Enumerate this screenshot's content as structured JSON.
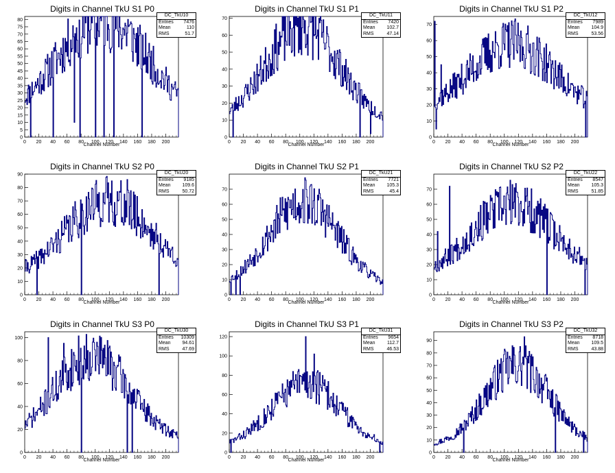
{
  "chart_data": [
    {
      "type": "histogram",
      "title": "Digits in Channel TkU S1 P0",
      "stats_name": "DC_TkU10",
      "entries": "7476",
      "mean": "110",
      "rms": "51.7",
      "xlabel": "Channel Number",
      "xlim": [
        0,
        218
      ],
      "ylim": [
        0,
        82
      ],
      "x_ticks": [
        0,
        20,
        40,
        60,
        80,
        100,
        120,
        140,
        160,
        180,
        200
      ],
      "y_ticks": [
        0,
        5,
        10,
        15,
        20,
        25,
        30,
        35,
        40,
        45,
        50,
        55,
        60,
        65,
        70,
        75,
        80
      ],
      "peak": 80,
      "baseline": 10,
      "mu": 110,
      "sigma": 66,
      "seed": 11,
      "spikes": [
        [
          8,
          0
        ],
        [
          40,
          0
        ],
        [
          70,
          10
        ],
        [
          78,
          0
        ],
        [
          100,
          0
        ],
        [
          112,
          0
        ],
        [
          126,
          0
        ],
        [
          146,
          80
        ],
        [
          166,
          0
        ]
      ]
    },
    {
      "type": "histogram",
      "title": "Digits in Channel TkU S1 P1",
      "stats_name": "DC_TkU11",
      "entries": "7420",
      "mean": "102.7",
      "rms": "47.14",
      "xlabel": "Channel Number",
      "xlim": [
        0,
        218
      ],
      "ylim": [
        0,
        71
      ],
      "x_ticks": [
        0,
        20,
        40,
        60,
        80,
        100,
        120,
        140,
        160,
        180,
        200
      ],
      "y_ticks": [
        0,
        10,
        20,
        30,
        40,
        50,
        60,
        70
      ],
      "peak": 65,
      "baseline": 8,
      "mu": 103,
      "sigma": 52,
      "seed": 23,
      "spikes": [
        [
          5,
          0
        ],
        [
          185,
          0
        ],
        [
          200,
          2
        ]
      ]
    },
    {
      "type": "histogram",
      "title": "Digits in Channel TkU S1 P2",
      "stats_name": "DC_TkU12",
      "entries": "7989",
      "mean": "104.9",
      "rms": "53.56",
      "xlabel": "Channel Number",
      "xlim": [
        0,
        218
      ],
      "ylim": [
        0,
        75
      ],
      "x_ticks": [
        0,
        20,
        40,
        60,
        80,
        100,
        120,
        140,
        160,
        180,
        200
      ],
      "y_ticks": [
        0,
        10,
        20,
        30,
        40,
        50,
        60,
        70
      ],
      "peak": 58,
      "baseline": 14,
      "mu": 110,
      "sigma": 60,
      "seed": 37,
      "spikes": [
        [
          1,
          72
        ],
        [
          3,
          5
        ],
        [
          10,
          45
        ],
        [
          215,
          0
        ]
      ]
    },
    {
      "type": "histogram",
      "title": "Digits in Channel TkU S2 P0",
      "stats_name": "DC_TkU20",
      "entries": "9185",
      "mean": "109.6",
      "rms": "50.72",
      "xlabel": "Channel Number",
      "xlim": [
        0,
        218
      ],
      "ylim": [
        0,
        90
      ],
      "x_ticks": [
        0,
        20,
        40,
        60,
        80,
        100,
        120,
        140,
        160,
        180,
        200
      ],
      "y_ticks": [
        0,
        10,
        20,
        30,
        40,
        50,
        60,
        70,
        80,
        90
      ],
      "peak": 70,
      "baseline": 12,
      "mu": 118,
      "sigma": 60,
      "seed": 41,
      "spikes": [
        [
          17,
          0
        ],
        [
          80,
          0
        ],
        [
          145,
          86
        ],
        [
          190,
          0
        ]
      ]
    },
    {
      "type": "histogram",
      "title": "Digits in Channel TkU S2 P1",
      "stats_name": "DC_TkU21",
      "entries": "7721",
      "mean": "105.3",
      "rms": "45.4",
      "xlabel": "Channel Number",
      "xlim": [
        0,
        218
      ],
      "ylim": [
        0,
        80
      ],
      "x_ticks": [
        0,
        20,
        40,
        60,
        80,
        100,
        120,
        140,
        160,
        180,
        200
      ],
      "y_ticks": [
        0,
        10,
        20,
        30,
        40,
        50,
        60,
        70
      ],
      "peak": 62,
      "baseline": 4,
      "mu": 105,
      "sigma": 50,
      "seed": 53,
      "spikes": [
        [
          2,
          0
        ],
        [
          9,
          0
        ],
        [
          12,
          12
        ],
        [
          15,
          0
        ],
        [
          108,
          76
        ]
      ]
    },
    {
      "type": "histogram",
      "title": "Digits in Channel TkU S2 P2",
      "stats_name": "DC_TkU22",
      "entries": "8547",
      "mean": "105.3",
      "rms": "51.85",
      "xlabel": "Channel Number",
      "xlim": [
        0,
        218
      ],
      "ylim": [
        0,
        80
      ],
      "x_ticks": [
        0,
        20,
        40,
        60,
        80,
        100,
        120,
        140,
        160,
        180,
        200
      ],
      "y_ticks": [
        0,
        10,
        20,
        30,
        40,
        50,
        60,
        70
      ],
      "peak": 60,
      "baseline": 12,
      "mu": 112,
      "sigma": 58,
      "seed": 67,
      "spikes": [
        [
          5,
          42
        ],
        [
          22,
          72
        ],
        [
          160,
          0
        ],
        [
          214,
          0
        ]
      ]
    },
    {
      "type": "histogram",
      "title": "Digits in Channel TkU S3 P0",
      "stats_name": "DC_TkU30",
      "entries": "10309",
      "mean": "94.61",
      "rms": "47.69",
      "xlabel": "Channel Number",
      "xlim": [
        0,
        218
      ],
      "ylim": [
        0,
        105
      ],
      "x_ticks": [
        0,
        20,
        40,
        60,
        80,
        100,
        120,
        140,
        160,
        180,
        200
      ],
      "y_ticks": [
        0,
        20,
        40,
        60,
        80,
        100
      ],
      "peak": 85,
      "baseline": 10,
      "mu": 95,
      "sigma": 52,
      "seed": 71,
      "spikes": [
        [
          33,
          100
        ],
        [
          55,
          95
        ],
        [
          80,
          0
        ],
        [
          145,
          0
        ],
        [
          152,
          0
        ]
      ]
    },
    {
      "type": "histogram",
      "title": "Digits in Channel TkU S3 P1",
      "stats_name": "DC_TkU31",
      "entries": "9654",
      "mean": "112.7",
      "rms": "46.53",
      "xlabel": "Channel Number",
      "xlim": [
        0,
        218
      ],
      "ylim": [
        0,
        125
      ],
      "x_ticks": [
        0,
        20,
        40,
        60,
        80,
        100,
        120,
        140,
        160,
        180,
        200
      ],
      "y_ticks": [
        0,
        20,
        40,
        60,
        80,
        100,
        120
      ],
      "peak": 72,
      "baseline": 6,
      "mu": 108,
      "sigma": 48,
      "seed": 83,
      "spikes": [
        [
          108,
          120
        ],
        [
          120,
          102
        ],
        [
          2,
          0
        ],
        [
          213,
          0
        ]
      ]
    },
    {
      "type": "histogram",
      "title": "Digits in Channel TkU S3 P2",
      "stats_name": "DC_TkU32",
      "entries": "8718",
      "mean": "109.5",
      "rms": "43.88",
      "xlabel": "Channel Number",
      "xlim": [
        0,
        218
      ],
      "ylim": [
        0,
        97
      ],
      "x_ticks": [
        0,
        20,
        40,
        60,
        80,
        100,
        120,
        140,
        160,
        180,
        200
      ],
      "y_ticks": [
        0,
        10,
        20,
        30,
        40,
        50,
        60,
        70,
        80,
        90
      ],
      "peak": 70,
      "baseline": 5,
      "mu": 118,
      "sigma": 46,
      "seed": 97,
      "spikes": [
        [
          42,
          0
        ],
        [
          128,
          93
        ],
        [
          172,
          0
        ],
        [
          212,
          0
        ]
      ]
    }
  ],
  "colors": {
    "line": "#000080",
    "axis": "#000000",
    "background": "#ffffff"
  },
  "stats_labels": {
    "entries": "Entries",
    "mean": "Mean",
    "rms": "RMS"
  }
}
